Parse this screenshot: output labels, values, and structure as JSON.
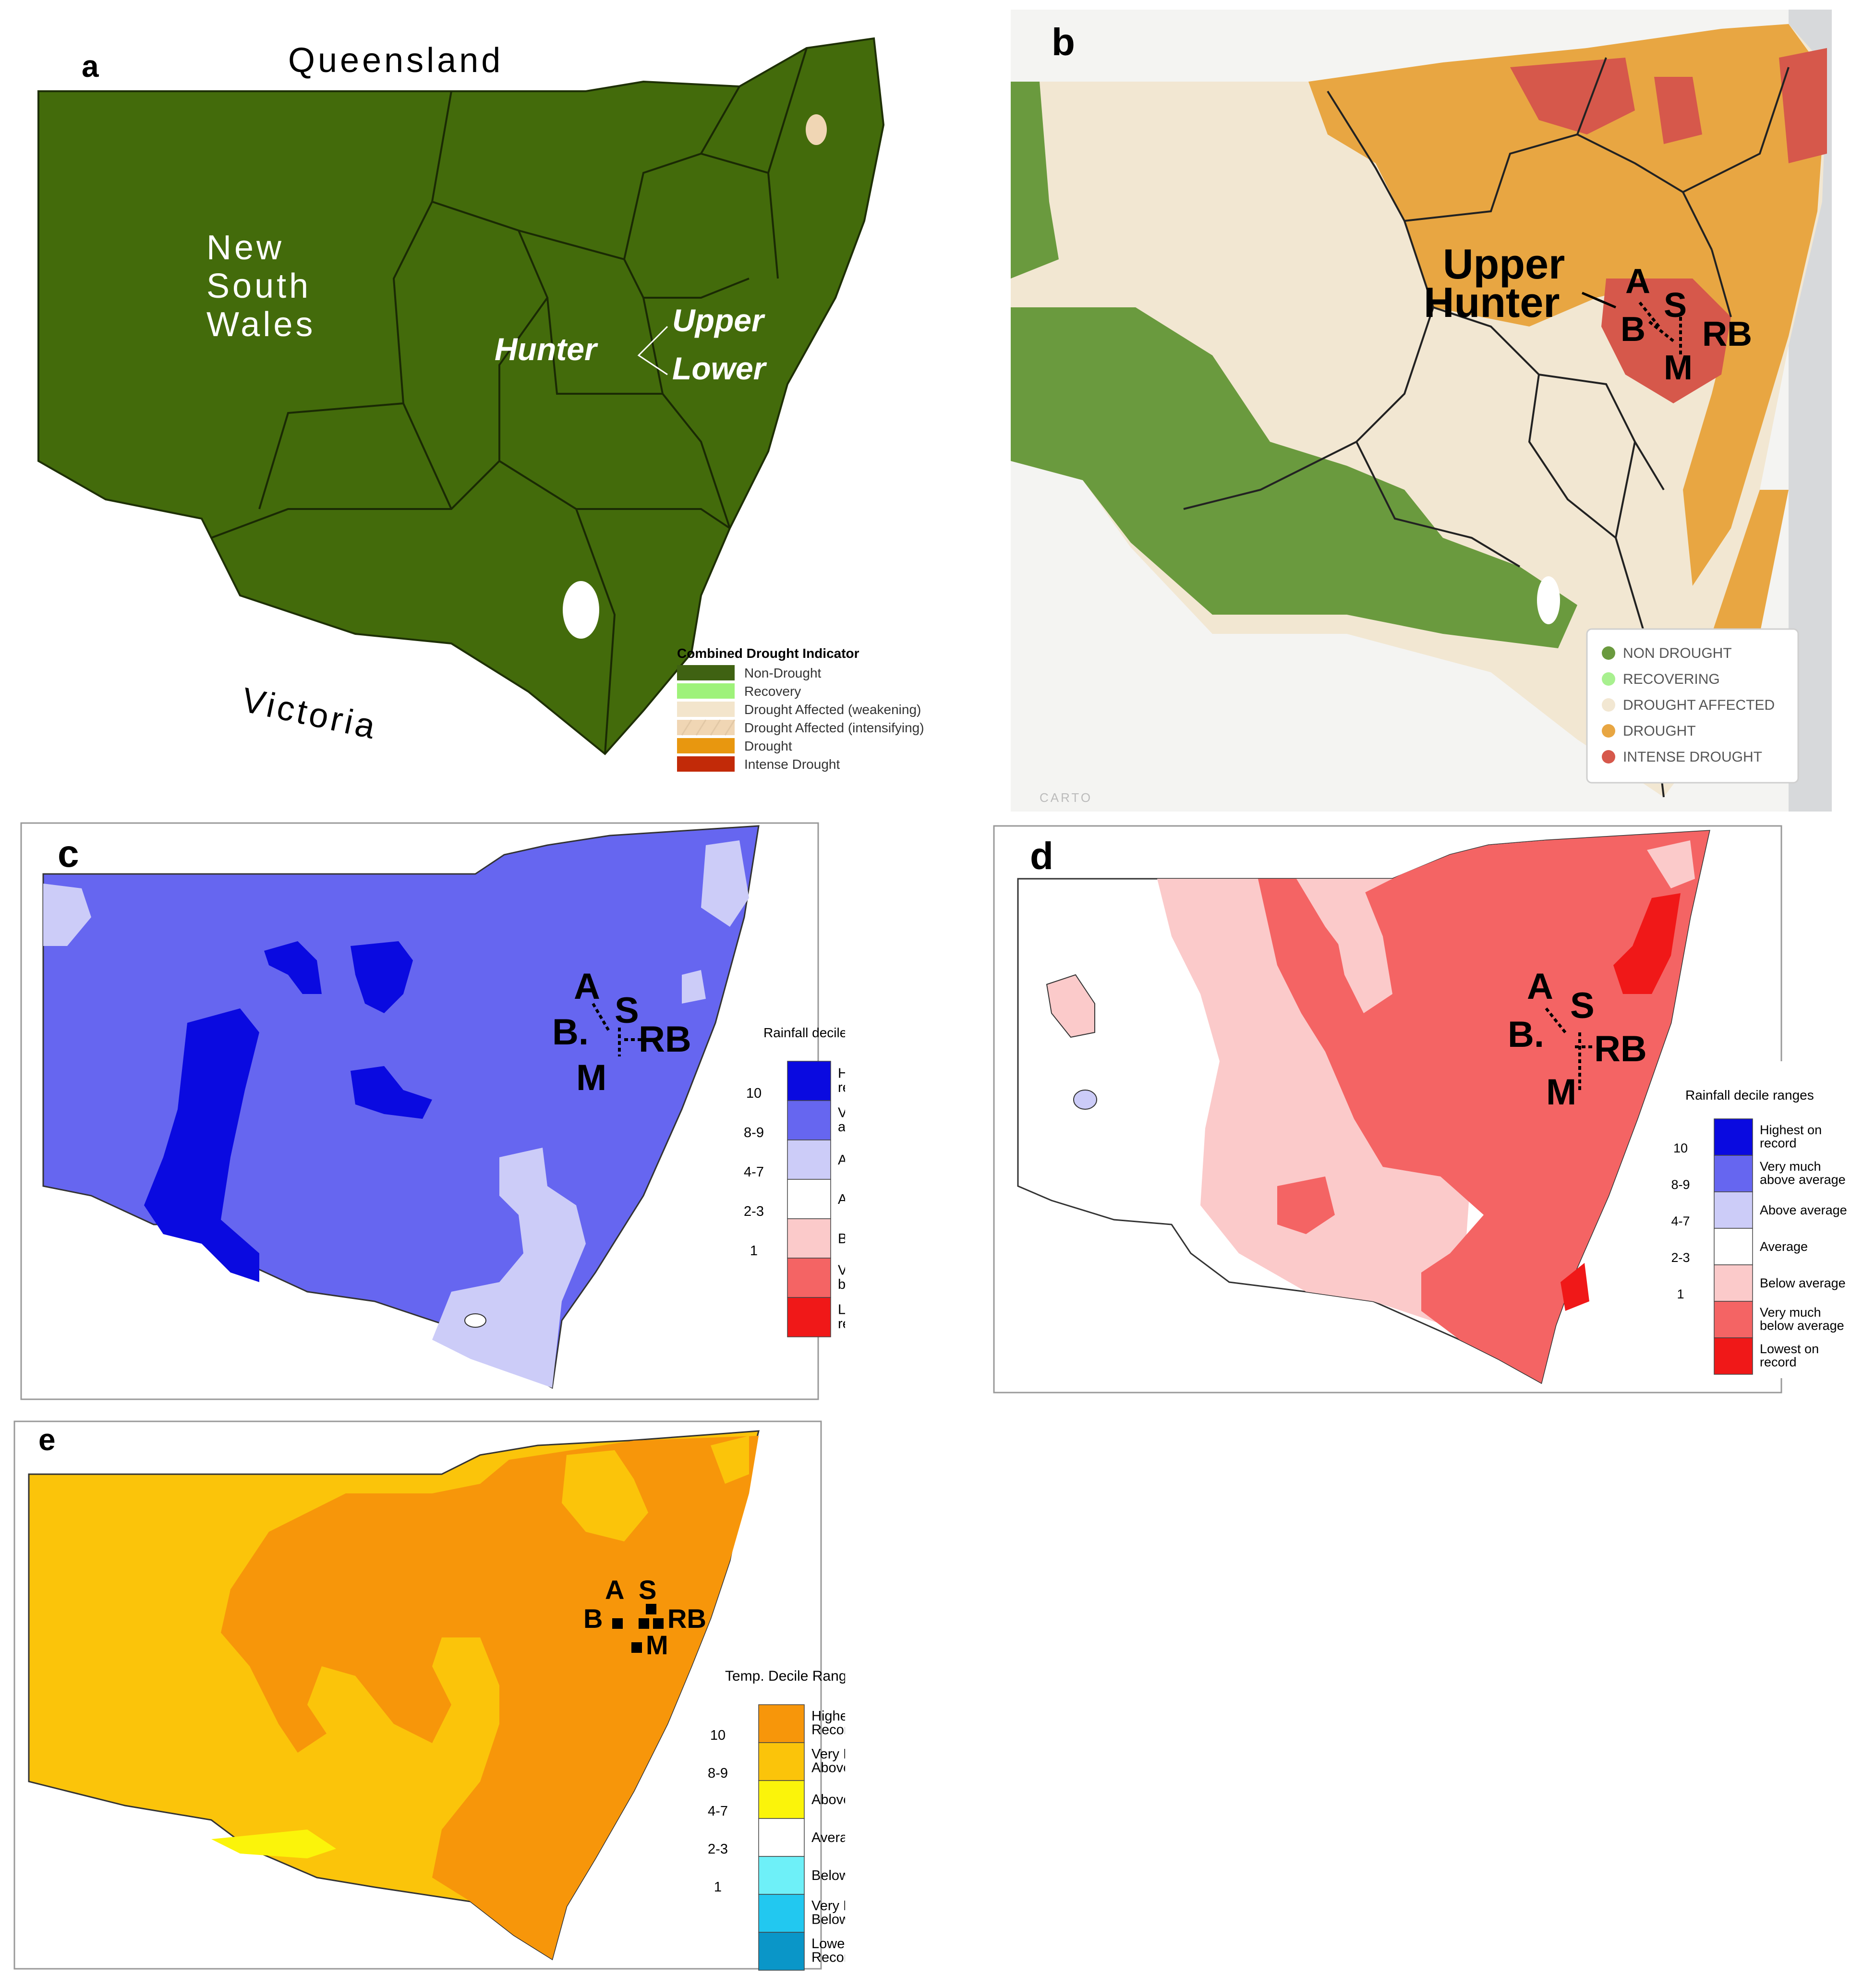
{
  "panel_a": {
    "letter": "a",
    "state_label_line1": "New",
    "state_label_line2": "South",
    "state_label_line3": "Wales",
    "neighbour_north": "Queensland",
    "neighbour_south": "Victoria",
    "region_hunter": "Hunter",
    "region_upper": "Upper",
    "region_lower": "Lower",
    "legend_title": "Combined Drought Indicator",
    "legend": [
      {
        "label": "Non-Drought",
        "color": "#3f6212"
      },
      {
        "label": "Recovery",
        "color": "#9ef27a"
      },
      {
        "label": "Drought Affected (weakening)",
        "color": "#f3e5cc"
      },
      {
        "label": "Drought Affected (intensifying)",
        "color": "#f0d6b4"
      },
      {
        "label": "Drought",
        "color": "#e8970f"
      },
      {
        "label": "Intense Drought",
        "color": "#c22a08"
      }
    ],
    "base_color": "#436b0b"
  },
  "panel_b": {
    "letter": "b",
    "upper": "Upper",
    "hunter": "Hunter",
    "sites": {
      "a": "A",
      "s": "S",
      "b": "B",
      "rb": "RB",
      "m": "M"
    },
    "legend": [
      {
        "label": "NON DROUGHT",
        "color": "#6a9a3e"
      },
      {
        "label": "RECOVERING",
        "color": "#a8f08f"
      },
      {
        "label": "DROUGHT AFFECTED",
        "color": "#f2e7d2"
      },
      {
        "label": "DROUGHT",
        "color": "#e8a642"
      },
      {
        "label": "INTENSE DROUGHT",
        "color": "#d6584b"
      }
    ],
    "attribution": "CARTO"
  },
  "panel_c": {
    "letter": "c",
    "sites": {
      "a": "A",
      "s": "S",
      "b": "B.",
      "rb": "RB",
      "m": "M"
    },
    "legend_title": "Rainfall decile ranges",
    "legend": [
      {
        "decile": "",
        "label1": "Highest on",
        "label2": "record",
        "color": "#0a0ae0"
      },
      {
        "decile": "10",
        "label1": "Very much",
        "label2": "above average",
        "color": "#6666f0"
      },
      {
        "decile": "8-9",
        "label1": "Above average",
        "label2": "",
        "color": "#ccccf8"
      },
      {
        "decile": "4-7",
        "label1": "Average",
        "label2": "",
        "color": "#ffffff"
      },
      {
        "decile": "2-3",
        "label1": "Below average",
        "label2": "",
        "color": "#fbcaca"
      },
      {
        "decile": "1",
        "label1": "Very much",
        "label2": "below average",
        "color": "#f46464"
      },
      {
        "decile": "",
        "label1": "Lowest on",
        "label2": "record",
        "color": "#f01818"
      }
    ]
  },
  "panel_d": {
    "letter": "d",
    "sites": {
      "a": "A",
      "s": "S",
      "b": "B.",
      "rb": "RB",
      "m": "M"
    },
    "legend_title": "Rainfall decile ranges",
    "legend": [
      {
        "decile": "",
        "label1": "Highest on",
        "label2": "record",
        "color": "#0a0ae0"
      },
      {
        "decile": "10",
        "label1": "Very much",
        "label2": "above average",
        "color": "#6666f0"
      },
      {
        "decile": "8-9",
        "label1": "Above average",
        "label2": "",
        "color": "#ccccf8"
      },
      {
        "decile": "4-7",
        "label1": "Average",
        "label2": "",
        "color": "#ffffff"
      },
      {
        "decile": "2-3",
        "label1": "Below average",
        "label2": "",
        "color": "#fbcaca"
      },
      {
        "decile": "1",
        "label1": "Very much",
        "label2": "below average",
        "color": "#f46464"
      },
      {
        "decile": "",
        "label1": "Lowest on",
        "label2": "record",
        "color": "#f01818"
      }
    ]
  },
  "panel_e": {
    "letter": "e",
    "sites": {
      "a": "A",
      "s": "S",
      "b": "B",
      "rb": "RB",
      "m": "M"
    },
    "legend_title": "Temp. Decile Ranges",
    "legend": [
      {
        "decile": "",
        "label1": "Highest on",
        "label2": "Record",
        "color": "#f7960a"
      },
      {
        "decile": "10",
        "label1": "Very Much",
        "label2": "Above Average",
        "color": "#fbc40a"
      },
      {
        "decile": "8-9",
        "label1": "Above Average",
        "label2": "",
        "color": "#fbf40a"
      },
      {
        "decile": "4-7",
        "label1": "Average",
        "label2": "",
        "color": "#ffffff"
      },
      {
        "decile": "2-3",
        "label1": "Below Average",
        "label2": "",
        "color": "#6ef0f8"
      },
      {
        "decile": "1",
        "label1": "Very Much",
        "label2": "Below Average",
        "color": "#22c8f0"
      },
      {
        "decile": "",
        "label1": "Lowest on",
        "label2": "Record",
        "color": "#0a96c8"
      }
    ]
  }
}
